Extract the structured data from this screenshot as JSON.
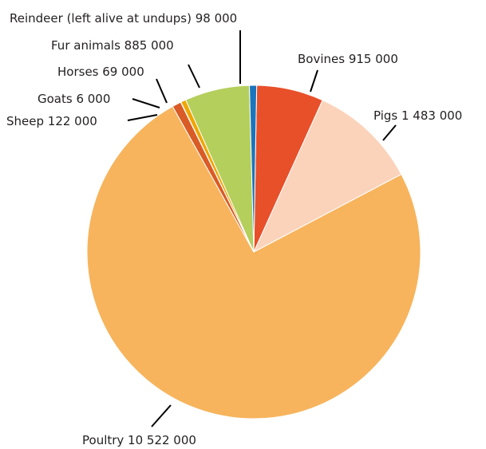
{
  "chart_data": {
    "type": "pie",
    "title": "",
    "start_angle_deg": 1,
    "direction": "clockwise",
    "slices": [
      {
        "name": "Bovines",
        "value": 915000,
        "value_label": "915 000",
        "color": "#e8502a"
      },
      {
        "name": "Pigs",
        "value": 1483000,
        "value_label": "1 483 000",
        "color": "#fbd3bb"
      },
      {
        "name": "Poultry",
        "value": 10522000,
        "value_label": "10 522 000",
        "color": "#f7b45c"
      },
      {
        "name": "Sheep",
        "value": 122000,
        "value_label": "122 000",
        "color": "#d95b26"
      },
      {
        "name": "Goats",
        "value": 6000,
        "value_label": "6 000",
        "color": "#b8b8b8"
      },
      {
        "name": "Horses",
        "value": 69000,
        "value_label": "69 000",
        "color": "#f0a500"
      },
      {
        "name": "Fur animals",
        "value": 885000,
        "value_label": "885 000",
        "color": "#b4cf5c"
      },
      {
        "name": "Reindeer (left alive at undups)",
        "value": 98000,
        "value_label": "98 000",
        "color": "#1b75bc"
      }
    ]
  }
}
